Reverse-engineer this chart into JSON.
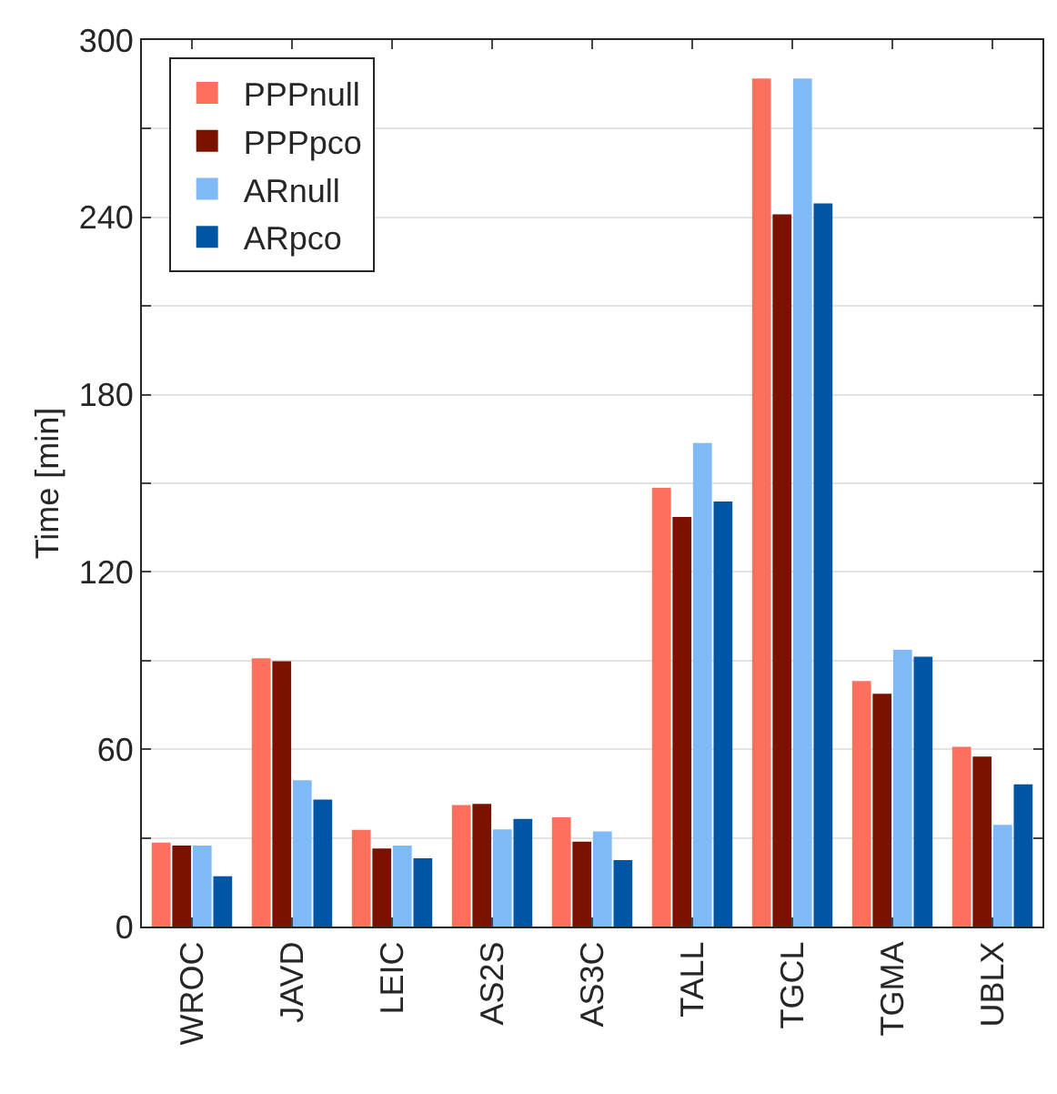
{
  "chart_data": {
    "type": "bar",
    "ylabel": "Time [min]",
    "categories": [
      "WROC",
      "JAVD",
      "LEIC",
      "AS2S",
      "AS3C",
      "TALL",
      "TGCL",
      "TGMA",
      "UBLX"
    ],
    "series": [
      {
        "name": "PPPnull",
        "color": "#ff6f5e",
        "values": [
          28.4,
          90.8,
          32.7,
          41.1,
          37,
          148.5,
          287,
          83.1,
          60.8
        ]
      },
      {
        "name": "PPPpco",
        "color": "#7b1200",
        "values": [
          27.4,
          89.8,
          26.4,
          41.5,
          28.7,
          138.6,
          241,
          78.8,
          57.5
        ]
      },
      {
        "name": "ARnull",
        "color": "#7fbaf7",
        "values": [
          27.4,
          49.5,
          27.4,
          32.9,
          32.2,
          163.6,
          287,
          93.6,
          34.4
        ]
      },
      {
        "name": "ARpco",
        "color": "#0056a4",
        "values": [
          17,
          43,
          23.1,
          36.4,
          22.5,
          143.8,
          244.7,
          91.3,
          48.1
        ]
      }
    ],
    "ylim": [
      0,
      300
    ],
    "yticks": [
      0,
      {
        "value": 30,
        "label": null
      },
      60,
      {
        "value": 90,
        "label": null
      },
      120,
      {
        "value": 150,
        "label": null
      },
      180,
      {
        "value": 210,
        "label": null
      },
      240,
      {
        "value": 270,
        "label": null
      },
      300
    ],
    "grid": "y",
    "legend": "top left"
  }
}
